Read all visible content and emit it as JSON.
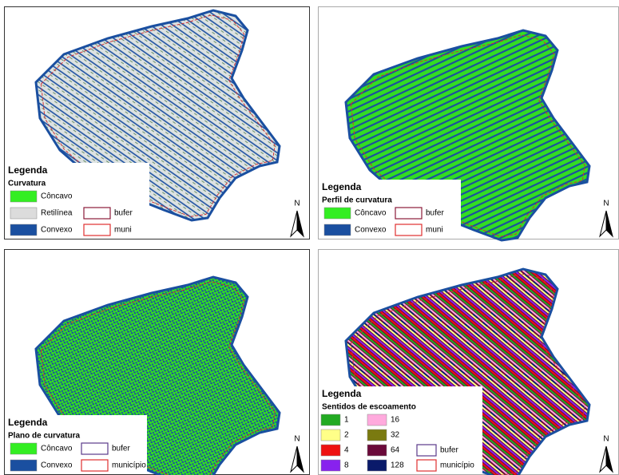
{
  "panels": [
    {
      "legend_title": "Legenda",
      "subtitle": "Curvatura",
      "north": "N",
      "columns": [
        [
          {
            "label": "Côncavo",
            "color": "#33ee22"
          },
          {
            "label": "Retilínea",
            "color": "#dcdcdc"
          },
          {
            "label": "Convexo",
            "color": "#1a4fa0"
          }
        ],
        [
          {
            "label": "bufer",
            "border": "#8b1a3a"
          },
          {
            "label": "muni",
            "border": "#e03030"
          }
        ]
      ]
    },
    {
      "legend_title": "Legenda",
      "subtitle": "Perfil de curvatura",
      "north": "N",
      "columns": [
        [
          {
            "label": "Côncavo",
            "color": "#33ee22"
          },
          {
            "label": "Convexo",
            "color": "#1a4fa0"
          }
        ],
        [
          {
            "label": "bufer",
            "border": "#8b1a3a"
          },
          {
            "label": "muni",
            "border": "#e03030"
          }
        ]
      ]
    },
    {
      "legend_title": "Legenda",
      "subtitle": "Plano de curvatura",
      "north": "N",
      "columns": [
        [
          {
            "label": "Côncavo",
            "color": "#33ee22"
          },
          {
            "label": "Convexo",
            "color": "#1a4fa0"
          }
        ],
        [
          {
            "label": "bufer",
            "border": "#5a3a8a"
          },
          {
            "label": "município",
            "border": "#e03030"
          }
        ]
      ]
    },
    {
      "legend_title": "Legenda",
      "subtitle": "Sentidos de escoamento",
      "north": "N",
      "columns": [
        [
          {
            "label": "1",
            "color": "#22aa22"
          },
          {
            "label": "2",
            "color": "#ffff88"
          },
          {
            "label": "4",
            "color": "#ee1111"
          },
          {
            "label": "8",
            "color": "#8822ee"
          }
        ],
        [
          {
            "label": "16",
            "color": "#ffaadd"
          },
          {
            "label": "32",
            "color": "#7a7a10"
          },
          {
            "label": "64",
            "color": "#6a0a3a"
          },
          {
            "label": "128",
            "color": "#0a1a6a"
          }
        ],
        [
          {
            "label": "bufer",
            "border": "#5a3a8a"
          },
          {
            "label": "município",
            "border": "#e03030"
          }
        ]
      ]
    }
  ]
}
